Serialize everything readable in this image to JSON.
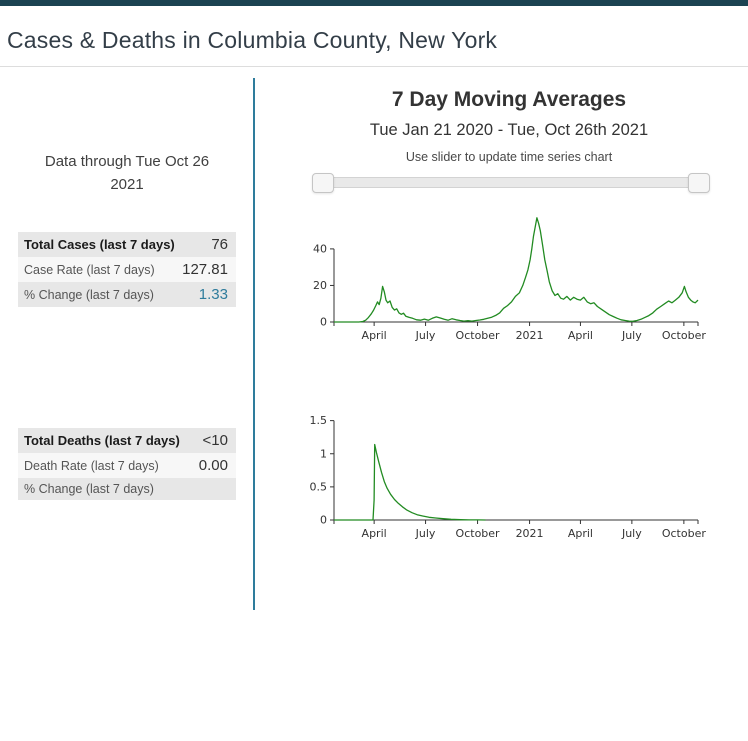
{
  "header": {
    "title": "Cases & Deaths in Columbia County, New York"
  },
  "left_panel": {
    "data_through": "Data through Tue Oct 26 2021",
    "cases": [
      {
        "label": "Total Cases (last 7 days)",
        "value": "76"
      },
      {
        "label": "Case Rate (last 7 days)",
        "value": "127.81"
      },
      {
        "label": "% Change (last 7 days)",
        "value": "1.33"
      }
    ],
    "deaths": [
      {
        "label": "Total Deaths (last 7 days)",
        "value": "<10"
      },
      {
        "label": "Death Rate (last 7 days)",
        "value": "0.00"
      },
      {
        "label": "% Change (last 7 days)",
        "value": ""
      }
    ]
  },
  "right_panel": {
    "title": "7 Day Moving Averages",
    "subtitle": "Tue Jan 21 2020 - Tue, Oct 26th 2021",
    "slider_hint": "Use slider to update time series chart"
  },
  "colors": {
    "top_bar": "#1b4352",
    "accent_teal": "#2e7c9c",
    "line_green": "#228B22",
    "row_stripe": "#e7e7e7"
  },
  "chart_data": [
    {
      "type": "line",
      "title": "Cases 7 day moving average",
      "x_range": [
        "2020-01-21",
        "2021-10-26"
      ],
      "ylim": [
        0,
        58
      ],
      "yticks": [
        0,
        20,
        40
      ],
      "grid": false,
      "legend": "none",
      "xticks": [
        {
          "date": "2020-04-01",
          "label": "April"
        },
        {
          "date": "2020-07-01",
          "label": "July"
        },
        {
          "date": "2020-10-01",
          "label": "October"
        },
        {
          "date": "2021-01-01",
          "label": "2021"
        },
        {
          "date": "2021-04-01",
          "label": "April"
        },
        {
          "date": "2021-07-01",
          "label": "July"
        },
        {
          "date": "2021-10-01",
          "label": "October"
        }
      ],
      "series": [
        {
          "name": "cases-7day-avg",
          "color": "#228B22",
          "points": [
            [
              "2020-01-21",
              0
            ],
            [
              "2020-02-05",
              0
            ],
            [
              "2020-02-20",
              0
            ],
            [
              "2020-03-05",
              0
            ],
            [
              "2020-03-12",
              0.3
            ],
            [
              "2020-03-17",
              1
            ],
            [
              "2020-03-22",
              2.5
            ],
            [
              "2020-03-27",
              4.5
            ],
            [
              "2020-03-31",
              6.5
            ],
            [
              "2020-04-04",
              9
            ],
            [
              "2020-04-07",
              11
            ],
            [
              "2020-04-10",
              9.5
            ],
            [
              "2020-04-13",
              13
            ],
            [
              "2020-04-16",
              19.5
            ],
            [
              "2020-04-19",
              16.5
            ],
            [
              "2020-04-22",
              12
            ],
            [
              "2020-04-25",
              10.5
            ],
            [
              "2020-04-29",
              11.5
            ],
            [
              "2020-05-03",
              8
            ],
            [
              "2020-05-07",
              6.5
            ],
            [
              "2020-05-11",
              7.2
            ],
            [
              "2020-05-15",
              5
            ],
            [
              "2020-05-19",
              4.2
            ],
            [
              "2020-05-23",
              4.8
            ],
            [
              "2020-05-27",
              3.2
            ],
            [
              "2020-06-02",
              2.5
            ],
            [
              "2020-06-08",
              2
            ],
            [
              "2020-06-15",
              1.2
            ],
            [
              "2020-06-22",
              1
            ],
            [
              "2020-06-29",
              1.6
            ],
            [
              "2020-07-06",
              1
            ],
            [
              "2020-07-13",
              2
            ],
            [
              "2020-07-20",
              2.8
            ],
            [
              "2020-07-27",
              2.2
            ],
            [
              "2020-08-03",
              1.5
            ],
            [
              "2020-08-10",
              1
            ],
            [
              "2020-08-17",
              1.8
            ],
            [
              "2020-08-24",
              1.2
            ],
            [
              "2020-08-31",
              0.8
            ],
            [
              "2020-09-07",
              0.5
            ],
            [
              "2020-09-14",
              0.7
            ],
            [
              "2020-09-21",
              0.5
            ],
            [
              "2020-09-28",
              0.8
            ],
            [
              "2020-10-05",
              1.1
            ],
            [
              "2020-10-12",
              1.5
            ],
            [
              "2020-10-19",
              2.1
            ],
            [
              "2020-10-26",
              2.6
            ],
            [
              "2020-11-02",
              3.6
            ],
            [
              "2020-11-09",
              5
            ],
            [
              "2020-11-16",
              7.5
            ],
            [
              "2020-11-23",
              9
            ],
            [
              "2020-11-30",
              11
            ],
            [
              "2020-12-07",
              14
            ],
            [
              "2020-12-14",
              16
            ],
            [
              "2020-12-20",
              20
            ],
            [
              "2020-12-25",
              24.5
            ],
            [
              "2020-12-29",
              28.5
            ],
            [
              "2021-01-02",
              34
            ],
            [
              "2021-01-05",
              40
            ],
            [
              "2021-01-08",
              47
            ],
            [
              "2021-01-11",
              52
            ],
            [
              "2021-01-14",
              57
            ],
            [
              "2021-01-17",
              54
            ],
            [
              "2021-01-20",
              50
            ],
            [
              "2021-01-24",
              42
            ],
            [
              "2021-01-28",
              34
            ],
            [
              "2021-02-01",
              28
            ],
            [
              "2021-02-05",
              22
            ],
            [
              "2021-02-10",
              17
            ],
            [
              "2021-02-15",
              14.5
            ],
            [
              "2021-02-20",
              15.5
            ],
            [
              "2021-02-25",
              13
            ],
            [
              "2021-03-02",
              12.5
            ],
            [
              "2021-03-08",
              14
            ],
            [
              "2021-03-14",
              12
            ],
            [
              "2021-03-20",
              13.5
            ],
            [
              "2021-03-26",
              12.5
            ],
            [
              "2021-04-01",
              12
            ],
            [
              "2021-04-07",
              13.5
            ],
            [
              "2021-04-13",
              11
            ],
            [
              "2021-04-19",
              10
            ],
            [
              "2021-04-25",
              10.5
            ],
            [
              "2021-05-01",
              8.5
            ],
            [
              "2021-05-08",
              7
            ],
            [
              "2021-05-15",
              5.5
            ],
            [
              "2021-05-22",
              4
            ],
            [
              "2021-05-29",
              3
            ],
            [
              "2021-06-05",
              2
            ],
            [
              "2021-06-12",
              1.2
            ],
            [
              "2021-06-19",
              0.8
            ],
            [
              "2021-06-26",
              0.5
            ],
            [
              "2021-07-03",
              0.4
            ],
            [
              "2021-07-10",
              0.8
            ],
            [
              "2021-07-17",
              1.5
            ],
            [
              "2021-07-24",
              2.5
            ],
            [
              "2021-07-31",
              3.5
            ],
            [
              "2021-08-07",
              5
            ],
            [
              "2021-08-14",
              7
            ],
            [
              "2021-08-21",
              8.5
            ],
            [
              "2021-08-28",
              10
            ],
            [
              "2021-09-04",
              11.5
            ],
            [
              "2021-09-10",
              10.5
            ],
            [
              "2021-09-16",
              12
            ],
            [
              "2021-09-22",
              13.5
            ],
            [
              "2021-09-28",
              16
            ],
            [
              "2021-10-02",
              19.5
            ],
            [
              "2021-10-05",
              16.5
            ],
            [
              "2021-10-09",
              13.5
            ],
            [
              "2021-10-13",
              12
            ],
            [
              "2021-10-17",
              11
            ],
            [
              "2021-10-21",
              10.5
            ],
            [
              "2021-10-26",
              12
            ]
          ]
        }
      ]
    },
    {
      "type": "line",
      "title": "Deaths 7 day moving average",
      "x_range": [
        "2020-01-21",
        "2021-10-26"
      ],
      "ylim": [
        0,
        1.6
      ],
      "yticks": [
        0,
        0.5,
        1,
        1.5
      ],
      "grid": false,
      "legend": "none",
      "xticks": [
        {
          "date": "2020-04-01",
          "label": "April"
        },
        {
          "date": "2020-07-01",
          "label": "July"
        },
        {
          "date": "2020-10-01",
          "label": "October"
        },
        {
          "date": "2021-01-01",
          "label": "2021"
        },
        {
          "date": "2021-04-01",
          "label": "April"
        },
        {
          "date": "2021-07-01",
          "label": "July"
        },
        {
          "date": "2021-10-01",
          "label": "October"
        }
      ],
      "series": [
        {
          "name": "deaths-7day-avg",
          "color": "#228B22",
          "points": [
            [
              "2020-01-21",
              0
            ],
            [
              "2020-02-15",
              0
            ],
            [
              "2020-03-10",
              0
            ],
            [
              "2020-03-30",
              0
            ],
            [
              "2020-04-01",
              0.3
            ],
            [
              "2020-04-02",
              1.14
            ],
            [
              "2020-04-05",
              1.02
            ],
            [
              "2020-04-09",
              0.88
            ],
            [
              "2020-04-14",
              0.72
            ],
            [
              "2020-04-19",
              0.58
            ],
            [
              "2020-04-24",
              0.48
            ],
            [
              "2020-04-30",
              0.39
            ],
            [
              "2020-05-07",
              0.31
            ],
            [
              "2020-05-14",
              0.25
            ],
            [
              "2020-05-21",
              0.2
            ],
            [
              "2020-05-29",
              0.15
            ],
            [
              "2020-06-07",
              0.11
            ],
            [
              "2020-06-16",
              0.08
            ],
            [
              "2020-06-26",
              0.06
            ],
            [
              "2020-07-07",
              0.04
            ],
            [
              "2020-07-19",
              0.03
            ],
            [
              "2020-08-01",
              0.02
            ],
            [
              "2020-08-15",
              0.01
            ],
            [
              "2020-09-01",
              0.005
            ],
            [
              "2020-09-16",
              0.002
            ],
            [
              "2020-10-01",
              0.001
            ],
            [
              "2020-10-15",
              0
            ]
          ]
        }
      ]
    }
  ]
}
